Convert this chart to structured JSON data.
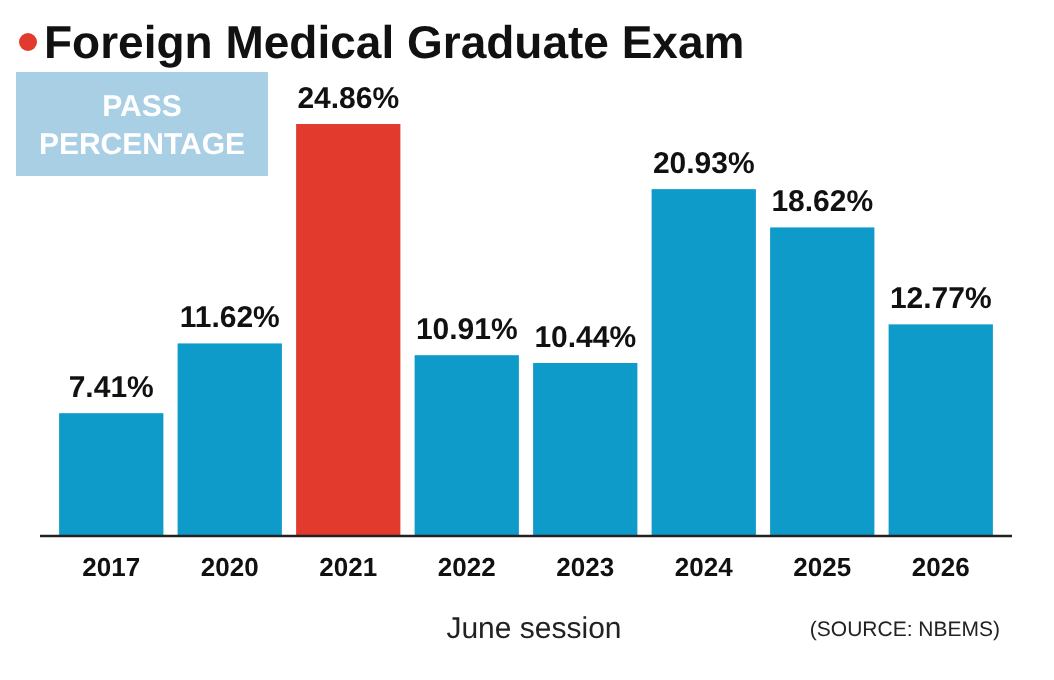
{
  "chart_data": {
    "type": "bar",
    "title": "Foreign Medical Graduate Exam",
    "categories": [
      "2017",
      "2020",
      "2021",
      "2022",
      "2023",
      "2024",
      "2025",
      "2026"
    ],
    "values": [
      7.41,
      11.62,
      24.86,
      10.91,
      10.44,
      20.93,
      18.62,
      12.77
    ],
    "colors": [
      "#0f9bc9",
      "#0f9bc9",
      "#e23b2e",
      "#0f9bc9",
      "#0f9bc9",
      "#0f9bc9",
      "#0f9bc9",
      "#0f9bc9"
    ],
    "value_labels": [
      "7.41%",
      "11.62%",
      "24.86%",
      "10.91%",
      "10.44%",
      "20.93%",
      "18.62%",
      "12.77%"
    ],
    "xlabel": "June session",
    "annotations": [
      "PASS PERCENTAGE",
      "(SOURCE: NBEMS)"
    ]
  }
}
